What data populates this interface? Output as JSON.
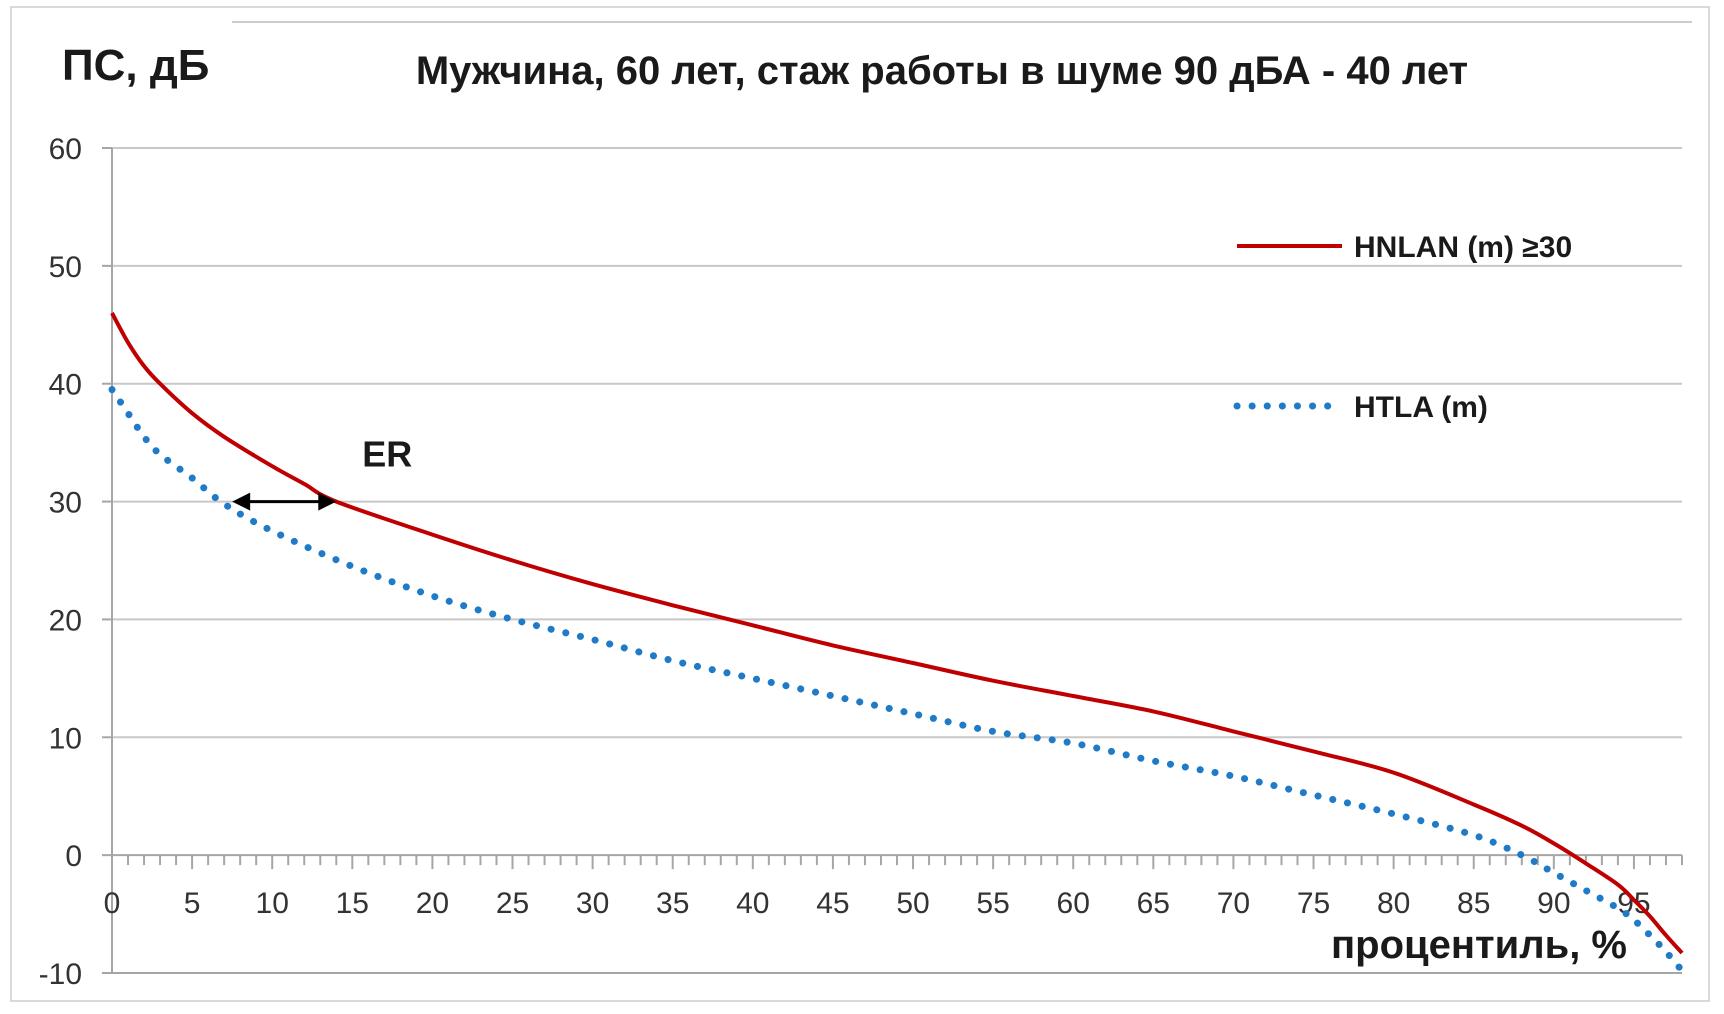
{
  "chart_data": {
    "type": "line",
    "title": "Мужчина, 60 лет, стаж работы в шуме 90 дБА - 40 лет",
    "ylabel": "ПС, дБ",
    "xlabel": "процентиль, %",
    "ylim": [
      -10,
      60
    ],
    "xlim": [
      0,
      98
    ],
    "yticks": [
      -10,
      0,
      10,
      20,
      30,
      40,
      50,
      60
    ],
    "xticks": [
      0,
      5,
      10,
      15,
      20,
      25,
      30,
      35,
      40,
      45,
      50,
      55,
      60,
      65,
      70,
      75,
      80,
      85,
      90,
      95
    ],
    "grid": true,
    "legend_position": "right",
    "series": [
      {
        "name": "HNLAN (m) ≥30",
        "style": "solid",
        "color": "#c00000",
        "x": [
          0,
          1,
          2,
          3,
          5,
          7,
          10,
          12,
          14,
          20,
          25,
          30,
          35,
          40,
          45,
          50,
          55,
          60,
          65,
          70,
          75,
          80,
          85,
          88,
          90,
          92,
          94,
          95,
          96,
          97,
          98
        ],
        "y": [
          46,
          43.5,
          41.5,
          40,
          37.5,
          35.5,
          33,
          31.5,
          30,
          27.2,
          25,
          23,
          21.2,
          19.5,
          17.8,
          16.3,
          14.8,
          13.5,
          12.2,
          10.5,
          8.8,
          7,
          4.3,
          2.5,
          1,
          -0.7,
          -2.5,
          -3.8,
          -5.2,
          -6.8,
          -8.3
        ]
      },
      {
        "name": "HTLA (m)",
        "style": "dotted",
        "color": "#1f7bc8",
        "x": [
          0,
          1,
          2,
          3,
          5,
          7,
          10,
          15,
          20,
          25,
          30,
          35,
          40,
          45,
          50,
          55,
          60,
          65,
          70,
          75,
          80,
          85,
          88,
          90,
          92,
          94,
          95,
          96,
          97,
          98
        ],
        "y": [
          39.5,
          37.5,
          35.5,
          34,
          32,
          29.8,
          27.5,
          24.5,
          22,
          20,
          18.3,
          16.5,
          15,
          13.5,
          12,
          10.5,
          9.5,
          8,
          6.7,
          5.1,
          3.5,
          1.7,
          0,
          -1.5,
          -3,
          -4.5,
          -5.5,
          -6.8,
          -8.2,
          -9.8
        ]
      }
    ],
    "annotations": [
      {
        "text": "ER",
        "arrow_from_x": 7.5,
        "arrow_to_x": 14,
        "arrow_y": 30
      }
    ]
  }
}
